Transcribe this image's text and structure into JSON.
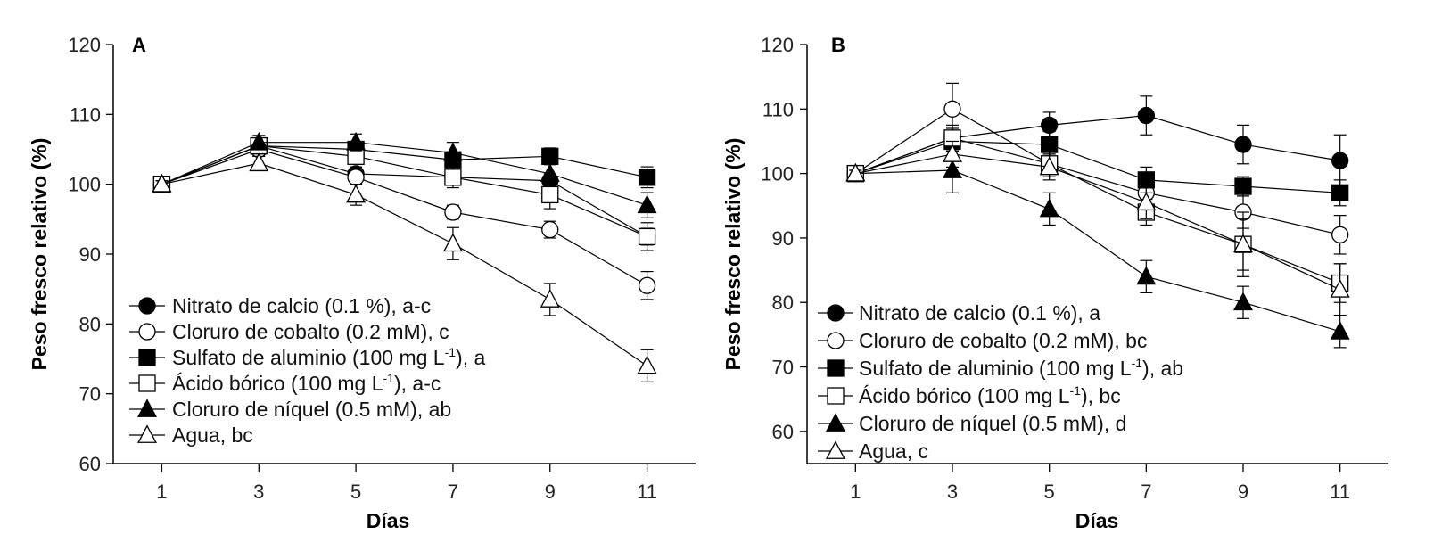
{
  "chart_data": [
    {
      "type": "line",
      "panel_label": "A",
      "xlabel": "Días",
      "ylabel": "Peso fresco relativo (%)",
      "x": [
        1,
        3,
        5,
        7,
        9,
        11
      ],
      "xticks": [
        "1",
        "3",
        "5",
        "7",
        "9",
        "11"
      ],
      "yticks": [
        "60",
        "70",
        "80",
        "90",
        "100",
        "110",
        "120"
      ],
      "ylim": [
        60,
        120
      ],
      "xlim": [
        0,
        12
      ],
      "series": [
        {
          "name": "Nitrato de calcio (0.1 %), a-c",
          "marker": "circle-filled",
          "values": [
            100,
            105.5,
            101.5,
            101,
            100.5,
            92.5
          ],
          "errors": [
            0.5,
            1,
            1,
            1,
            1,
            1.2
          ]
        },
        {
          "name": "Cloruro de cobalto (0.2 mM), c",
          "marker": "circle-open",
          "values": [
            100,
            105,
            101,
            96,
            93.5,
            85.5
          ],
          "errors": [
            0.5,
            1,
            1,
            1,
            1.2,
            2
          ]
        },
        {
          "name": "Sulfato de aluminio (100 mg L-1), a",
          "name_parts": [
            "Sulfato de aluminio (100 mg L",
            "-1",
            "), a"
          ],
          "marker": "square-filled",
          "values": [
            100,
            105.5,
            105,
            103.5,
            104,
            101
          ],
          "errors": [
            0.5,
            1,
            1,
            1,
            1.2,
            1.5
          ]
        },
        {
          "name": "Ácido bórico (100 mg L-1), a-c",
          "name_parts": [
            "Ácido bórico (100 mg L",
            "-1",
            "), a-c"
          ],
          "marker": "square-open",
          "values": [
            100,
            105.5,
            104,
            101,
            98.5,
            92.5
          ],
          "errors": [
            0.5,
            1,
            1,
            1.5,
            2,
            2
          ]
        },
        {
          "name": "Cloruro de níquel (0.5 mM), ab",
          "marker": "triangle-filled",
          "values": [
            100,
            106,
            106,
            104.5,
            101.5,
            97
          ],
          "errors": [
            0.5,
            1,
            1.2,
            1.5,
            1.5,
            1.8
          ]
        },
        {
          "name": "Agua, bc",
          "marker": "triangle-open",
          "values": [
            100,
            103,
            98.5,
            91.5,
            83.5,
            74
          ],
          "errors": [
            0.5,
            1,
            1.5,
            2.3,
            2.3,
            2.3
          ]
        }
      ]
    },
    {
      "type": "line",
      "panel_label": "B",
      "xlabel": "Días",
      "ylabel": "Peso fresco relativo (%)",
      "x": [
        1,
        3,
        5,
        7,
        9,
        11
      ],
      "xticks": [
        "1",
        "3",
        "5",
        "7",
        "9",
        "11"
      ],
      "yticks": [
        "60",
        "70",
        "80",
        "90",
        "100",
        "110",
        "120"
      ],
      "ylim": [
        55,
        120
      ],
      "xlim": [
        0,
        12
      ],
      "series": [
        {
          "name": "Nitrato de calcio (0.1 %), a",
          "marker": "circle-filled",
          "values": [
            100,
            105.5,
            107.5,
            109,
            104.5,
            102
          ],
          "errors": [
            0.5,
            1.5,
            2,
            3,
            3,
            4
          ]
        },
        {
          "name": "Cloruro de cobalto (0.2 mM), bc",
          "marker": "circle-open",
          "values": [
            100,
            110,
            101.5,
            97,
            94,
            90.5
          ],
          "errors": [
            0.5,
            4,
            1.5,
            2,
            2.5,
            3
          ]
        },
        {
          "name": "Sulfato de aluminio (100 mg L-1), ab",
          "name_parts": [
            "Sulfato de aluminio (100 mg L",
            "-1",
            "), ab"
          ],
          "marker": "square-filled",
          "values": [
            100,
            105,
            104.5,
            99,
            98,
            97
          ],
          "errors": [
            0.5,
            1.5,
            2,
            2,
            1.5,
            2
          ]
        },
        {
          "name": "Ácido bórico (100 mg L-1), bc",
          "name_parts": [
            "Ácido bórico (100 mg L",
            "-1",
            "), bc"
          ],
          "marker": "square-open",
          "values": [
            100,
            105.5,
            101.5,
            94,
            89,
            83
          ],
          "errors": [
            0.5,
            2,
            2,
            2,
            4,
            3
          ]
        },
        {
          "name": "Cloruro de níquel (0.5 mM), d",
          "marker": "triangle-filled",
          "values": [
            100,
            100.5,
            94.5,
            84,
            80,
            75.5
          ],
          "errors": [
            0.5,
            3.5,
            2.5,
            2.5,
            2.5,
            2.5
          ]
        },
        {
          "name": "Agua, c",
          "marker": "triangle-open",
          "values": [
            100,
            103,
            101,
            95.5,
            89,
            82
          ],
          "errors": [
            0.5,
            2,
            2,
            2.5,
            5,
            4
          ]
        }
      ]
    }
  ]
}
